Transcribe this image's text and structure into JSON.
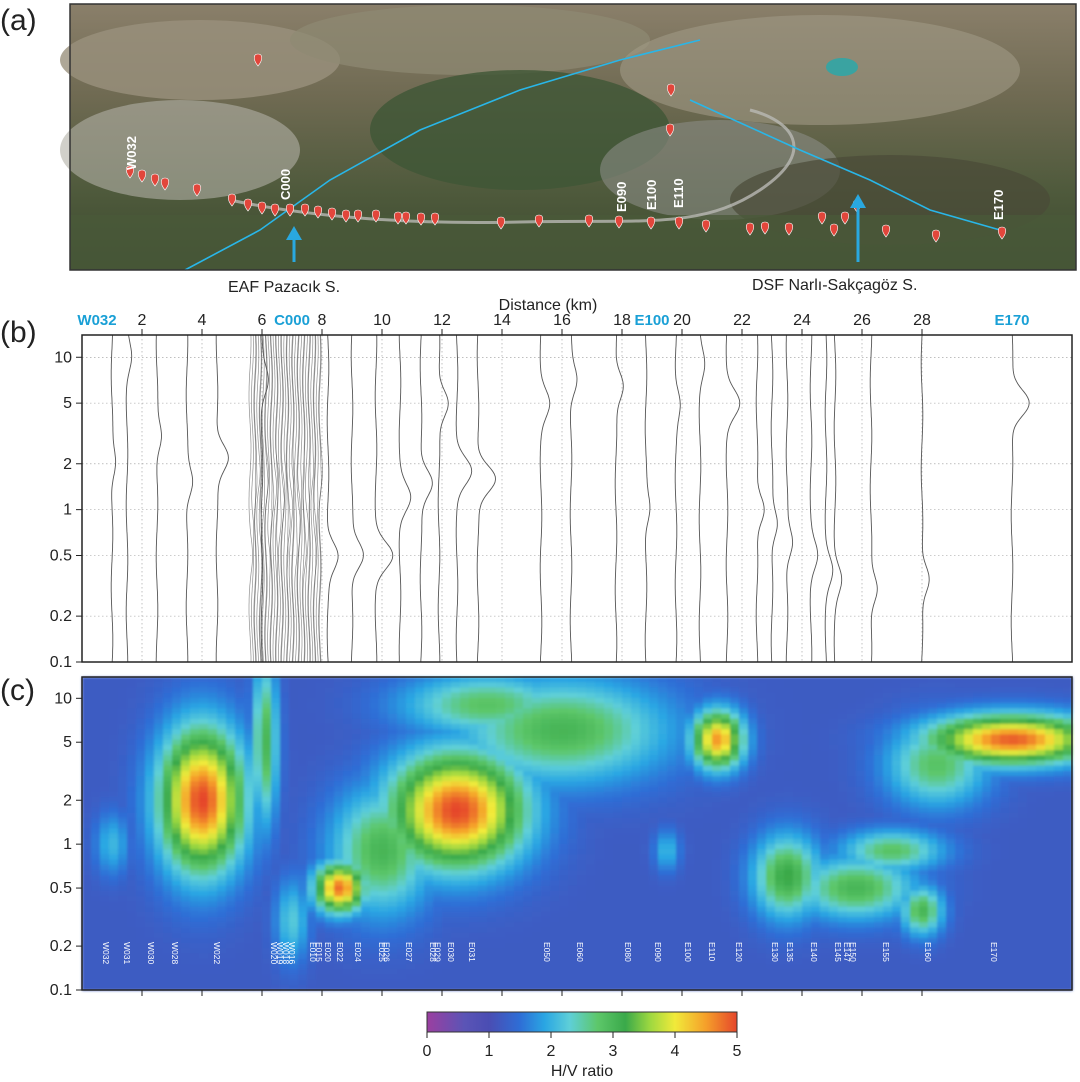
{
  "panels": {
    "a": "(a)",
    "b": "(b)",
    "c": "(c)"
  },
  "map": {
    "site_labels": [
      "W032",
      "C000",
      "E090",
      "E100",
      "E110",
      "E170"
    ],
    "arrow_labels": [
      "EAF Pazacık S.",
      "DSF Narlı-Sakçagöz S."
    ],
    "colors": {
      "fault_line": "#29b6e8",
      "marker": "#e2463b",
      "arrow": "#29a8e0"
    }
  },
  "chart_data": [
    {
      "type": "line",
      "panel": "(b)",
      "xlabel": "Distance (km)",
      "ylabel": "",
      "xlim": [
        0,
        33
      ],
      "ylim": [
        0.1,
        14
      ],
      "y_scale": "log",
      "grid": true,
      "x_ticks": [
        2,
        4,
        6,
        8,
        10,
        12,
        14,
        16,
        18,
        20,
        22,
        24,
        26,
        28
      ],
      "x_tick_labels": [
        "2",
        "4",
        "6",
        "8",
        "10",
        "12",
        "14",
        "16",
        "18",
        "20",
        "22",
        "24",
        "26",
        "28"
      ],
      "highlight_labels": [
        {
          "label": "W032",
          "x": 0.5
        },
        {
          "label": "C000",
          "x": 7.0
        },
        {
          "label": "E100",
          "x": 19.0
        },
        {
          "label": "E170",
          "x": 31.0
        }
      ],
      "y_ticks": [
        0.1,
        0.2,
        0.5,
        1,
        2,
        5,
        10
      ],
      "y_tick_labels": [
        "0.1",
        "0.2",
        "0.5",
        "1",
        "2",
        "5",
        "10"
      ],
      "series": [
        {
          "x": 1.0,
          "peaks": [
            {
              "f": 2.0,
              "a": 0.2
            }
          ]
        },
        {
          "x": 1.5,
          "peaks": [
            {
              "f": 10.0,
              "a": 0.2
            }
          ]
        },
        {
          "x": 2.5,
          "peaks": [
            {
              "f": 3.0,
              "a": 0.25
            }
          ]
        },
        {
          "x": 3.5,
          "peaks": [
            {
              "f": 1.5,
              "a": 0.3
            }
          ]
        },
        {
          "x": 4.5,
          "peaks": [
            {
              "f": 2.2,
              "a": 0.6
            }
          ]
        },
        {
          "x": 6.0,
          "peaks": [
            {
              "f": 7.0,
              "a": 0.3
            }
          ]
        },
        {
          "x": 8.2,
          "peaks": [
            {
              "f": 0.5,
              "a": 0.5
            }
          ]
        },
        {
          "x": 9.0,
          "peaks": [
            {
              "f": 0.5,
              "a": 0.6
            }
          ]
        },
        {
          "x": 9.8,
          "peaks": [
            {
              "f": 0.5,
              "a": 0.8
            }
          ]
        },
        {
          "x": 10.6,
          "peaks": [
            {
              "f": 1.2,
              "a": 0.5
            }
          ]
        },
        {
          "x": 11.3,
          "peaks": [
            {
              "f": 1.5,
              "a": 0.6
            }
          ]
        },
        {
          "x": 11.9,
          "peaks": [
            {
              "f": 5.0,
              "a": 0.5
            }
          ]
        },
        {
          "x": 12.5,
          "peaks": [
            {
              "f": 1.8,
              "a": 0.7
            }
          ]
        },
        {
          "x": 13.2,
          "peaks": [
            {
              "f": 1.6,
              "a": 0.9
            }
          ]
        },
        {
          "x": 15.3,
          "peaks": [
            {
              "f": 5.0,
              "a": 0.4
            }
          ]
        },
        {
          "x": 16.3,
          "peaks": [
            {
              "f": 7.0,
              "a": 0.3
            }
          ]
        },
        {
          "x": 17.8,
          "peaks": [
            {
              "f": 6.5,
              "a": 0.4
            }
          ]
        },
        {
          "x": 18.8,
          "peaks": [
            {
              "f": 1.0,
              "a": 0.2
            }
          ]
        },
        {
          "x": 19.8,
          "peaks": [
            {
              "f": 5.0,
              "a": 0.2
            }
          ]
        },
        {
          "x": 20.6,
          "peaks": [
            {
              "f": 9.0,
              "a": 0.2
            }
          ]
        },
        {
          "x": 21.5,
          "peaks": [
            {
              "f": 5.0,
              "a": 0.6
            }
          ]
        },
        {
          "x": 22.5,
          "peaks": [
            {
              "f": 1.0,
              "a": 0.4
            }
          ]
        },
        {
          "x": 23.0,
          "peaks": [
            {
              "f": 0.8,
              "a": 0.3
            }
          ]
        },
        {
          "x": 23.5,
          "peaks": [
            {
              "f": 0.6,
              "a": 0.3
            }
          ]
        },
        {
          "x": 24.3,
          "peaks": [
            {
              "f": 0.5,
              "a": 0.3
            }
          ]
        },
        {
          "x": 24.8,
          "peaks": [
            {
              "f": 0.4,
              "a": 0.3
            }
          ]
        },
        {
          "x": 25.1,
          "peaks": [
            {
              "f": 0.35,
              "a": 0.3
            }
          ]
        },
        {
          "x": 26.3,
          "peaks": [
            {
              "f": 0.3,
              "a": 0.35
            }
          ]
        },
        {
          "x": 28.0,
          "peaks": [
            {
              "f": 0.35,
              "a": 0.4
            }
          ]
        },
        {
          "x": 31.0,
          "peaks": [
            {
              "f": 5.0,
              "a": 0.9
            }
          ]
        }
      ]
    },
    {
      "type": "heatmap",
      "panel": "(c)",
      "ylim": [
        0.1,
        14
      ],
      "y_scale": "log",
      "y_ticks": [
        0.1,
        0.2,
        0.5,
        1,
        2,
        5,
        10
      ],
      "y_tick_labels": [
        "0.1",
        "0.2",
        "0.5",
        "1",
        "2",
        "5",
        "10"
      ],
      "colorbar": {
        "label": "H/V ratio",
        "min": 0,
        "max": 5,
        "ticks": [
          "0",
          "1",
          "2",
          "3",
          "4",
          "5"
        ],
        "colors": [
          "#9b3fa0",
          "#6a58b8",
          "#4a4db3",
          "#2e6ed6",
          "#2aa6e3",
          "#5ecfd8",
          "#5dc76a",
          "#3aa94a",
          "#9ed840",
          "#f1ea3a",
          "#f59f2a",
          "#e5462b"
        ]
      },
      "blobs": [
        {
          "x": 4.0,
          "f": 2.0,
          "amp": 5.0,
          "sx": 1.0,
          "sy": 0.35
        },
        {
          "x": 12.5,
          "f": 1.7,
          "amp": 5.0,
          "sx": 1.6,
          "sy": 0.28
        },
        {
          "x": 8.6,
          "f": 0.5,
          "amp": 4.8,
          "sx": 0.6,
          "sy": 0.12
        },
        {
          "x": 21.2,
          "f": 5.2,
          "amp": 4.6,
          "sx": 0.6,
          "sy": 0.14
        },
        {
          "x": 31.0,
          "f": 5.2,
          "amp": 4.9,
          "sx": 2.0,
          "sy": 0.12
        },
        {
          "x": 16.0,
          "f": 6.0,
          "amp": 3.0,
          "sx": 2.5,
          "sy": 0.25
        },
        {
          "x": 10.0,
          "f": 0.9,
          "amp": 3.0,
          "sx": 1.2,
          "sy": 0.3
        },
        {
          "x": 6.1,
          "f": 5.0,
          "amp": 3.0,
          "sx": 0.3,
          "sy": 0.4
        },
        {
          "x": 23.5,
          "f": 0.6,
          "amp": 3.2,
          "sx": 0.8,
          "sy": 0.2
        },
        {
          "x": 25.8,
          "f": 0.5,
          "amp": 3.0,
          "sx": 1.4,
          "sy": 0.15
        },
        {
          "x": 28.0,
          "f": 0.35,
          "amp": 3.0,
          "sx": 0.5,
          "sy": 0.12
        },
        {
          "x": 27.0,
          "f": 0.9,
          "amp": 2.8,
          "sx": 1.2,
          "sy": 0.1
        },
        {
          "x": 28.5,
          "f": 3.5,
          "amp": 2.8,
          "sx": 1.2,
          "sy": 0.2
        },
        {
          "x": 1.0,
          "f": 1.0,
          "amp": 2.0,
          "sx": 0.4,
          "sy": 0.15
        },
        {
          "x": 19.5,
          "f": 0.9,
          "amp": 2.0,
          "sx": 0.3,
          "sy": 0.1
        },
        {
          "x": 13.5,
          "f": 9.0,
          "amp": 2.8,
          "sx": 2.0,
          "sy": 0.15
        },
        {
          "x": 7.0,
          "f": 0.3,
          "amp": 2.2,
          "sx": 0.4,
          "sy": 0.2
        }
      ],
      "site_labels": [
        {
          "label": "W032",
          "x": 0.6
        },
        {
          "label": "W031",
          "x": 1.3
        },
        {
          "label": "W030",
          "x": 2.1
        },
        {
          "label": "W028",
          "x": 2.9
        },
        {
          "label": "W022",
          "x": 4.3
        },
        {
          "label": "W020",
          "x": 6.2
        },
        {
          "label": "W019",
          "x": 6.4
        },
        {
          "label": "W018",
          "x": 6.6
        },
        {
          "label": "W016",
          "x": 6.8
        },
        {
          "label": "E010",
          "x": 7.5
        },
        {
          "label": "E015",
          "x": 7.7
        },
        {
          "label": "E020",
          "x": 8.0
        },
        {
          "label": "E022",
          "x": 8.4
        },
        {
          "label": "E024",
          "x": 9.0
        },
        {
          "label": "E025",
          "x": 9.8
        },
        {
          "label": "E026",
          "x": 9.95
        },
        {
          "label": "E027",
          "x": 10.7
        },
        {
          "label": "E028",
          "x": 11.5
        },
        {
          "label": "E029",
          "x": 11.65
        },
        {
          "label": "E030",
          "x": 12.1
        },
        {
          "label": "E031",
          "x": 12.8
        },
        {
          "label": "E050",
          "x": 15.3
        },
        {
          "label": "E060",
          "x": 16.4
        },
        {
          "label": "E080",
          "x": 18.0
        },
        {
          "label": "E090",
          "x": 19.0
        },
        {
          "label": "E100",
          "x": 20.0
        },
        {
          "label": "E110",
          "x": 20.8
        },
        {
          "label": "E120",
          "x": 21.7
        },
        {
          "label": "E130",
          "x": 22.9
        },
        {
          "label": "E135",
          "x": 23.4
        },
        {
          "label": "E140",
          "x": 24.2
        },
        {
          "label": "E145",
          "x": 25.0
        },
        {
          "label": "E147",
          "x": 25.3
        },
        {
          "label": "E150",
          "x": 25.5
        },
        {
          "label": "E155",
          "x": 26.6
        },
        {
          "label": "E160",
          "x": 28.0
        },
        {
          "label": "E170",
          "x": 30.2
        }
      ]
    }
  ]
}
